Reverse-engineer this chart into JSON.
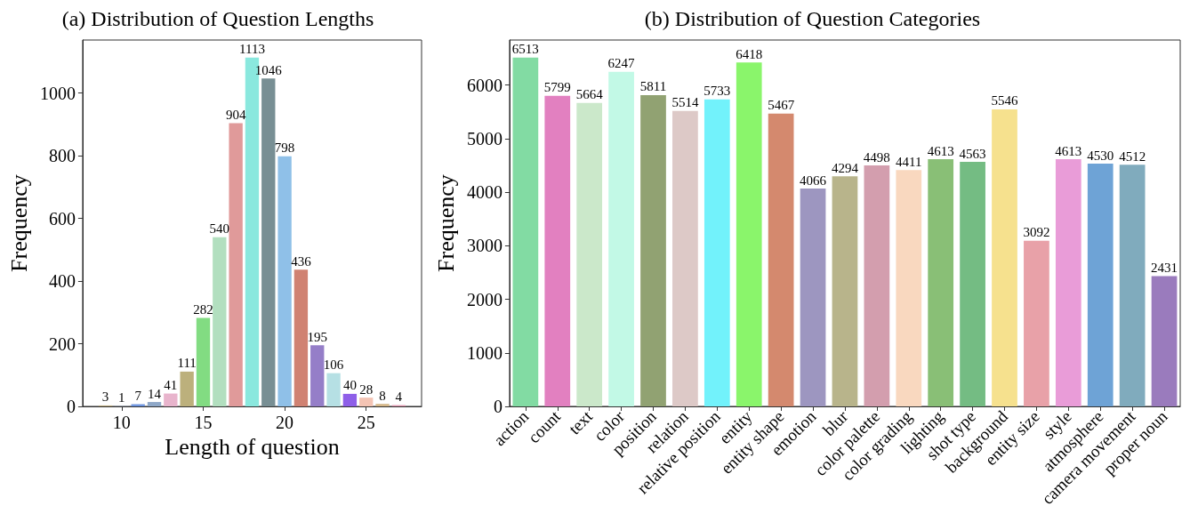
{
  "chart_data": [
    {
      "type": "bar",
      "title": "(a) Distribution of Question Lengths",
      "xlabel": "Length of question",
      "ylabel": "Frequency",
      "x": [
        9,
        10,
        11,
        12,
        13,
        14,
        15,
        16,
        17,
        18,
        19,
        20,
        21,
        22,
        23,
        24,
        25,
        26,
        27
      ],
      "values": [
        3,
        1,
        7,
        14,
        41,
        111,
        282,
        540,
        904,
        1113,
        1046,
        798,
        436,
        195,
        106,
        40,
        28,
        8,
        4
      ],
      "colors": [
        "#b8a87a",
        "#9fb0c8",
        "#6f96e0",
        "#8fa8c8",
        "#e8b4cc",
        "#bcb07c",
        "#82dc82",
        "#b2dfbf",
        "#e09a9a",
        "#8ae8de",
        "#788f94",
        "#8fc0e8",
        "#d08272",
        "#957ec8",
        "#b6e0e4",
        "#8e5fe8",
        "#f4c4b4",
        "#d6b88a",
        "#e098b0"
      ],
      "xlim": [
        7.6,
        28.4
      ],
      "xticks": [
        10,
        15,
        20,
        25
      ],
      "ylim": [
        0,
        1169
      ],
      "yticks": [
        0,
        200,
        400,
        600,
        800,
        1000
      ],
      "data_labels": true,
      "grid": false
    },
    {
      "type": "bar",
      "title": "(b) Distribution of Question Categories",
      "ylabel": "Frequency",
      "categories": [
        "action",
        "count",
        "text",
        "color",
        "position",
        "relation",
        "relative position",
        "entity",
        "entity shape",
        "emotion",
        "blur",
        "color palette",
        "color grading",
        "lighting",
        "shot type",
        "background",
        "entity size",
        "style",
        "atmosphere",
        "camera movement",
        "proper noun"
      ],
      "values": [
        6513,
        5799,
        5664,
        6247,
        5811,
        5514,
        5733,
        6418,
        5467,
        4066,
        4294,
        4498,
        4411,
        4613,
        4563,
        5546,
        3092,
        4613,
        4530,
        4512,
        2431
      ],
      "colors": [
        "#82dba3",
        "#e280c0",
        "#cbe8ca",
        "#c2f9e6",
        "#91a272",
        "#ddc9c7",
        "#72f2fb",
        "#8af56b",
        "#d4896e",
        "#9d96c0",
        "#b8b48b",
        "#d39eae",
        "#f9d8bf",
        "#89bf76",
        "#74bc83",
        "#f6e18e",
        "#e8a1a8",
        "#e99cd8",
        "#6ea3d6",
        "#80abbd",
        "#9a7bbd"
      ],
      "ylim": [
        0,
        6839
      ],
      "yticks": [
        0,
        1000,
        2000,
        3000,
        4000,
        5000,
        6000
      ],
      "data_labels": true,
      "grid": false
    }
  ]
}
